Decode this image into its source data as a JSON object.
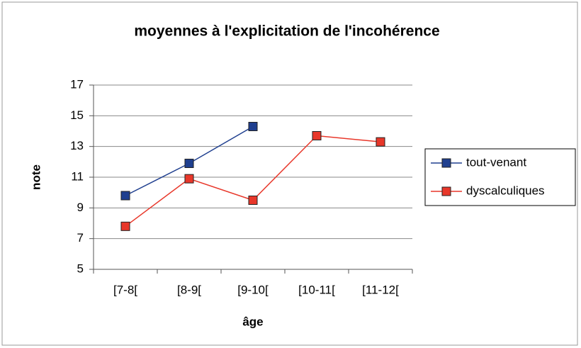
{
  "chart_data": {
    "type": "line",
    "title": "moyennes à l'explicitation de l'incohérence",
    "x_label": "âge",
    "y_label": "note",
    "categories": [
      "[7-8[",
      "[8-9[",
      "[9-10[",
      "[10-11[",
      "[11-12["
    ],
    "series": [
      {
        "name": "tout-venant",
        "color": "#1f3f8f",
        "values": [
          9.8,
          11.9,
          14.3,
          null,
          null
        ]
      },
      {
        "name": "dyscalculiques",
        "color": "#e8372a",
        "values": [
          7.8,
          10.9,
          9.5,
          13.7,
          13.3
        ]
      }
    ],
    "ylim": [
      5,
      17
    ],
    "yticks": [
      5,
      7,
      9,
      11,
      13,
      15,
      17
    ],
    "grid": true,
    "legend": "right"
  }
}
